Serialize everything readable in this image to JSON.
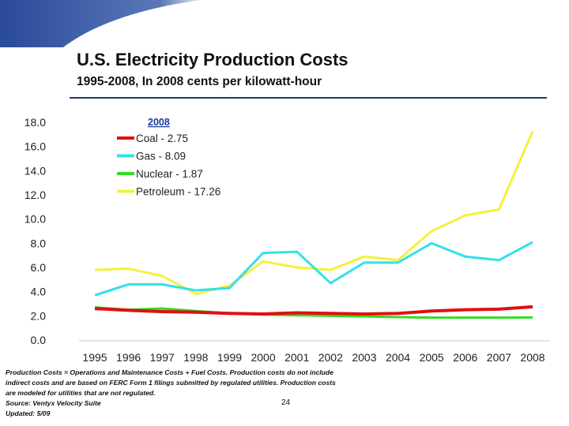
{
  "slide": {
    "title": "U.S. Electricity Production Costs",
    "subtitle": "1995-2008, In 2008 cents per kilowatt-hour",
    "footnote_lines": [
      "Production Costs = Operations and Maintenance Costs + Fuel Costs. Production costs do not include",
      "indirect costs and are based on FERC Form 1 filings submitted by regulated utilities. Production costs",
      "are modeled for utilities that are not regulated.",
      "Source: Ventyx Velocity Suite",
      "Updated: 5/09"
    ],
    "page_number": "24",
    "accent_color": "#2a4a9a"
  },
  "chart_data": {
    "type": "line",
    "title": "",
    "xlabel": "",
    "ylabel": "",
    "legend_title": "2008",
    "legend_placement": "top-left",
    "grid": false,
    "ylim": [
      0,
      18
    ],
    "yticks": [
      "0.0",
      "2.0",
      "4.0",
      "6.0",
      "8.0",
      "10.0",
      "12.0",
      "14.0",
      "16.0",
      "18.0"
    ],
    "categories": [
      "1995",
      "1996",
      "1997",
      "1998",
      "1999",
      "2000",
      "2001",
      "2002",
      "2003",
      "2004",
      "2005",
      "2006",
      "2007",
      "2008"
    ],
    "series": [
      {
        "name": "Coal - 2.75",
        "color": "#e01010",
        "values": [
          2.6,
          2.45,
          2.35,
          2.3,
          2.2,
          2.15,
          2.25,
          2.2,
          2.15,
          2.2,
          2.4,
          2.5,
          2.55,
          2.75
        ]
      },
      {
        "name": "Gas - 8.09",
        "color": "#33e0ea",
        "values": [
          3.7,
          4.6,
          4.6,
          4.1,
          4.3,
          7.2,
          7.3,
          4.7,
          6.4,
          6.4,
          8.0,
          6.9,
          6.6,
          8.09
        ]
      },
      {
        "name": "Nuclear - 1.87",
        "color": "#33dd22",
        "values": [
          2.7,
          2.5,
          2.6,
          2.4,
          2.2,
          2.1,
          2.05,
          2.0,
          1.95,
          1.9,
          1.85,
          1.85,
          1.85,
          1.87
        ]
      },
      {
        "name": "Petroleum - 17.26",
        "color": "#f5f03a",
        "values": [
          5.8,
          5.9,
          5.3,
          3.8,
          4.5,
          6.5,
          6.0,
          5.8,
          6.9,
          6.6,
          9.0,
          10.3,
          10.8,
          17.26
        ]
      }
    ]
  }
}
